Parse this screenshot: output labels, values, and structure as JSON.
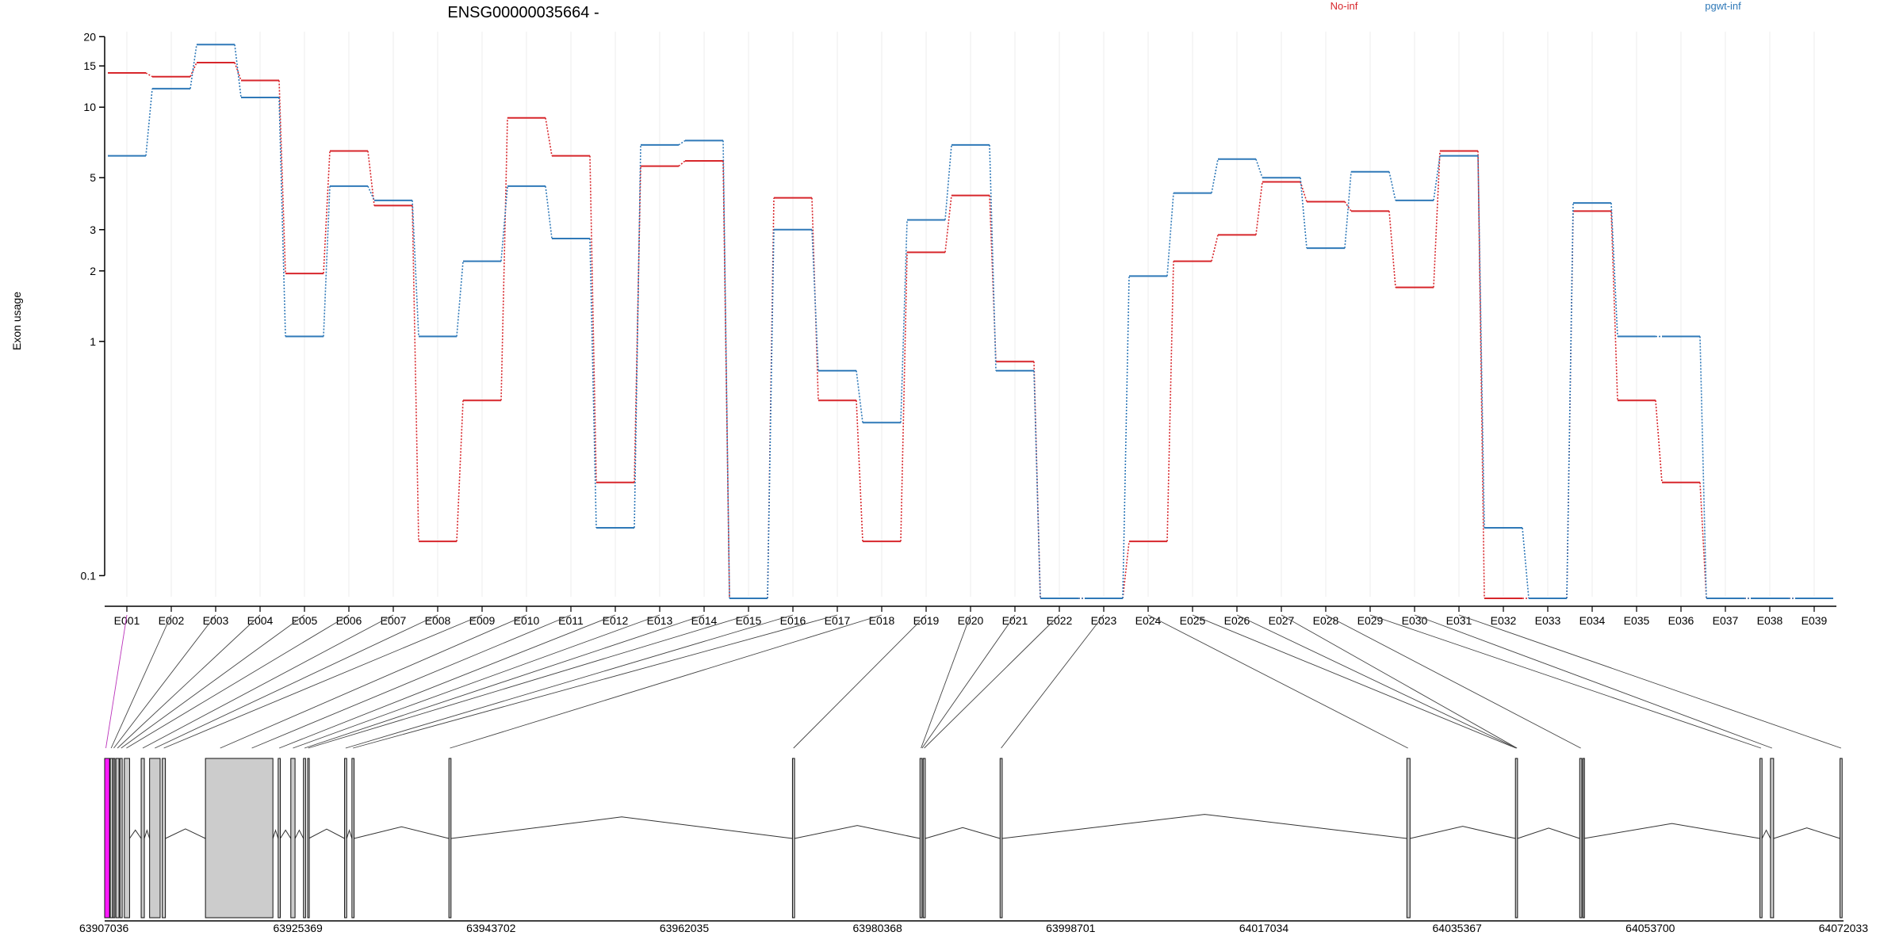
{
  "title": "ENSG00000035664 -",
  "ylabel": "Exon usage",
  "colors": {
    "no_inf": "#d7262b",
    "pgwt_inf": "#2f79b8",
    "exon": "#cccccc",
    "exon_hl": "#ff1aff"
  },
  "chart_data": {
    "type": "line",
    "ylog": true,
    "ylim": [
      0.08,
      21
    ],
    "yticks": [
      0.1,
      1,
      2,
      3,
      5,
      10,
      15,
      20
    ],
    "ytick_labels": [
      "0.1",
      "1",
      "2",
      "3",
      "5",
      "10",
      "15",
      "20"
    ],
    "categories": [
      "E001",
      "E002",
      "E003",
      "E004",
      "E005",
      "E006",
      "E007",
      "E008",
      "E009",
      "E010",
      "E011",
      "E012",
      "E013",
      "E014",
      "E015",
      "E016",
      "E017",
      "E018",
      "E019",
      "E020",
      "E021",
      "E022",
      "E023",
      "E024",
      "E025",
      "E026",
      "E027",
      "E028",
      "E029",
      "E030",
      "E031",
      "E032",
      "E033",
      "E034",
      "E035",
      "E036",
      "E037",
      "E038",
      "E039"
    ],
    "series": [
      {
        "name": "No-inf",
        "color": "#d7262b",
        "values": [
          14,
          13.5,
          15.5,
          13,
          1.95,
          6.5,
          3.8,
          0.14,
          0.56,
          9,
          6.2,
          0.25,
          5.6,
          5.9,
          0.08,
          4.1,
          0.56,
          0.14,
          2.4,
          4.2,
          0.82,
          0.08,
          0.08,
          0.14,
          2.2,
          2.85,
          4.8,
          3.95,
          3.6,
          1.7,
          6.5,
          0.08,
          0.08,
          3.6,
          0.56,
          0.25,
          0.08,
          0.08,
          0.08
        ]
      },
      {
        "name": "pgwt-inf",
        "color": "#2f79b8",
        "values": [
          6.2,
          12,
          18.5,
          11,
          1.05,
          4.6,
          4,
          1.05,
          2.2,
          4.6,
          2.75,
          0.16,
          6.9,
          7.2,
          0.08,
          3,
          0.75,
          0.45,
          3.3,
          6.9,
          0.75,
          0.08,
          0.08,
          1.9,
          4.3,
          6,
          5,
          2.5,
          5.3,
          4,
          6.2,
          0.16,
          0.08,
          3.9,
          1.05,
          1.05,
          0.08,
          0.08,
          0.08
        ]
      }
    ],
    "genome_axis": {
      "range": [
        63907036,
        64072033
      ],
      "ticks": [
        63907036,
        63925369,
        63943702,
        63962035,
        63980368,
        63998701,
        64017034,
        64035367,
        64053700,
        64072033
      ]
    },
    "exons": [
      [
        63907036,
        63907500,
        true
      ],
      [
        63907560,
        63907800,
        false
      ],
      [
        63907840,
        63908000,
        false
      ],
      [
        63908100,
        63908400,
        false
      ],
      [
        63908480,
        63908700,
        false
      ],
      [
        63908900,
        63909400,
        false
      ],
      [
        63910500,
        63910800,
        false
      ],
      [
        63911300,
        63912300,
        false
      ],
      [
        63912500,
        63912800,
        false
      ],
      [
        63916600,
        63923000,
        false
      ],
      [
        63923500,
        63923700,
        false
      ],
      [
        63924700,
        63925100,
        false
      ],
      [
        63925900,
        63926100,
        false
      ],
      [
        63926300,
        63926400,
        false
      ],
      [
        63929800,
        63930000,
        false
      ],
      [
        63930500,
        63930700,
        false
      ],
      [
        63939700,
        63939900,
        false
      ],
      [
        63972300,
        63972500,
        false
      ],
      [
        63984400,
        63984600,
        false
      ],
      [
        63984700,
        63984900,
        false
      ],
      [
        63992000,
        63992200,
        false
      ],
      [
        64030600,
        64030900,
        false
      ],
      [
        64040900,
        64041100,
        false
      ],
      [
        64047000,
        64047200,
        false
      ],
      [
        64047300,
        64047400,
        false
      ],
      [
        64064100,
        64064300,
        false
      ],
      [
        64065100,
        64065400,
        false
      ],
      [
        64071700,
        64071900,
        false
      ]
    ],
    "exon_links": [
      63907150,
      63907650,
      63907900,
      63908250,
      63908600,
      63909100,
      63910650,
      63911800,
      63912650,
      63918000,
      63921000,
      63923600,
      63924900,
      63926000,
      63926350,
      63929900,
      63930600,
      63939800,
      63972400,
      63984500,
      63984600,
      63984800,
      63992100,
      64030700,
      64040950,
      64041000,
      64041050,
      64047100,
      64064200,
      64065250,
      64071800
    ]
  }
}
